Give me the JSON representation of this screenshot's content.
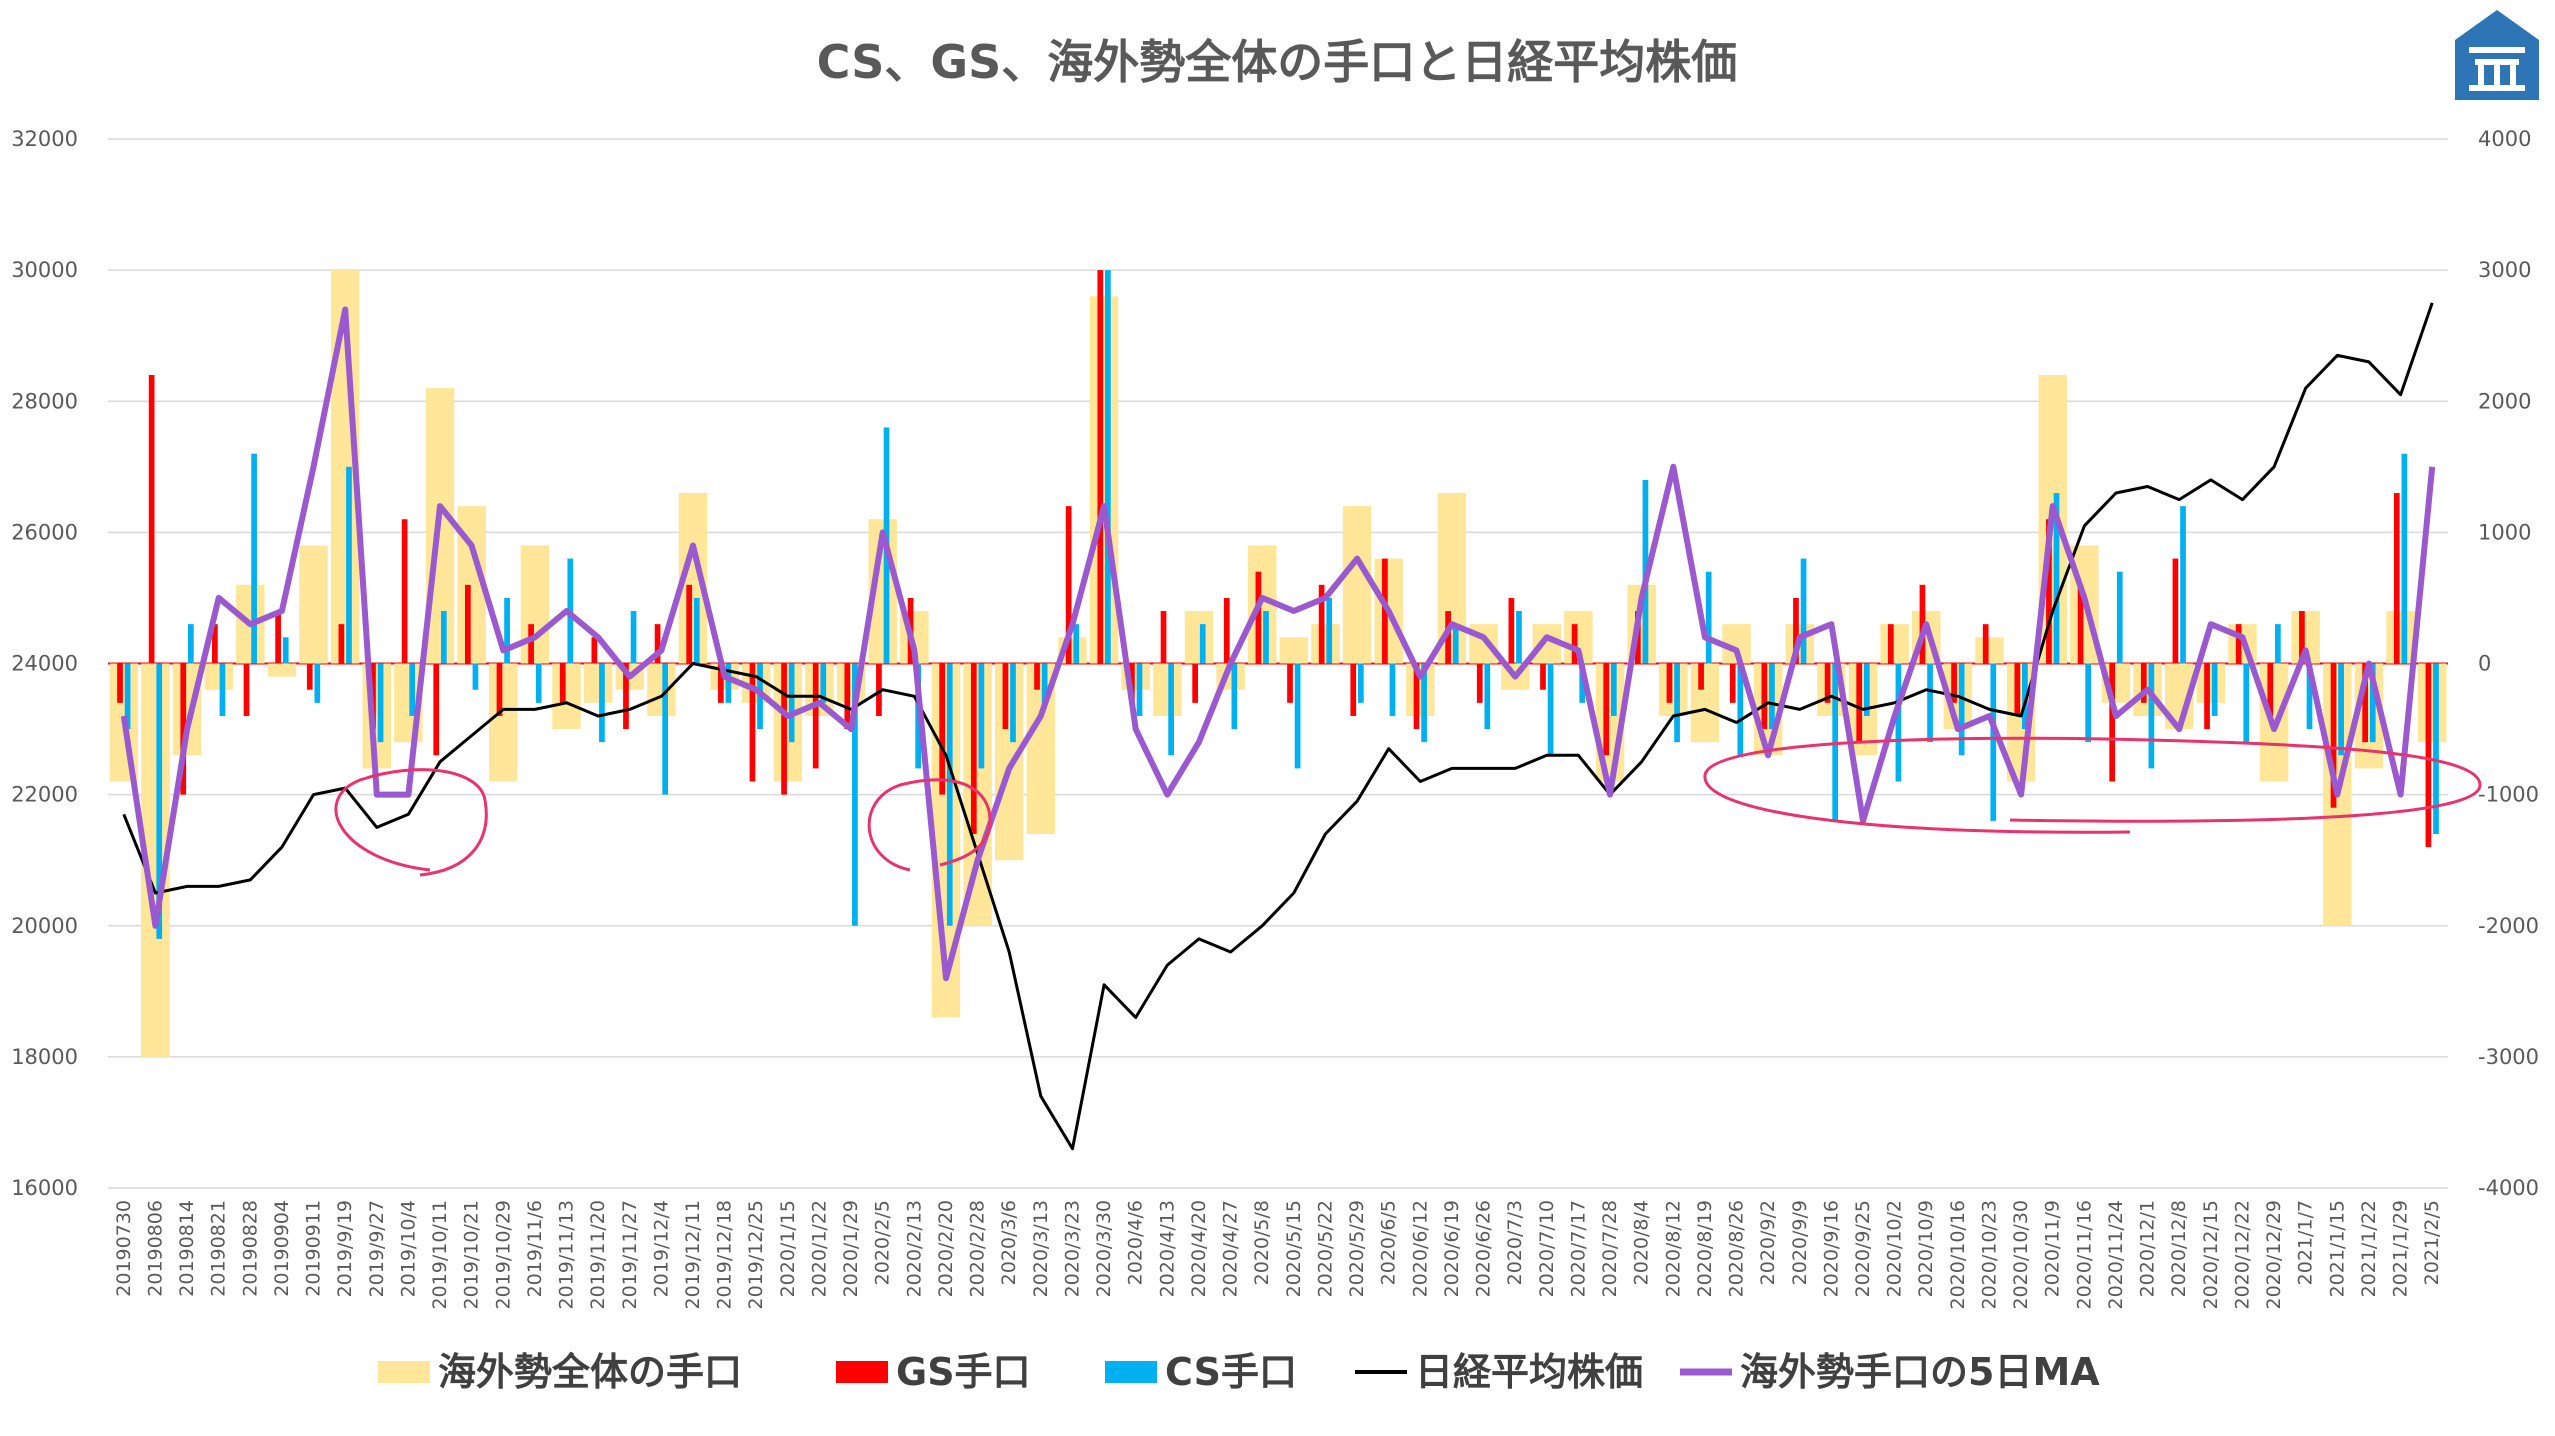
{
  "chart_data": {
    "type": "bar",
    "title": "CS、GS、海外勢全体の手口と日経平均株価",
    "left_axis": {
      "min": 16000,
      "max": 32000,
      "ticks": [
        16000,
        18000,
        20000,
        22000,
        24000,
        26000,
        28000,
        30000,
        32000
      ]
    },
    "right_axis": {
      "min": -4000,
      "max": 4000,
      "ticks": [
        -4000,
        -3000,
        -2000,
        -1000,
        0,
        1000,
        2000,
        3000,
        4000
      ]
    },
    "grid": true,
    "legend_position": "bottom",
    "categories": [
      "20190730",
      "20190806",
      "20190814",
      "20190821",
      "20190828",
      "20190904",
      "20190911",
      "2019/9/19",
      "2019/9/27",
      "2019/10/4",
      "2019/10/11",
      "2019/10/21",
      "2019/10/29",
      "2019/11/6",
      "2019/11/13",
      "2019/11/20",
      "2019/11/27",
      "2019/12/4",
      "2019/12/11",
      "2019/12/18",
      "2019/12/25",
      "2020/1/15",
      "2020/1/22",
      "2020/1/29",
      "2020/2/5",
      "2020/2/13",
      "2020/2/20",
      "2020/2/28",
      "2020/3/6",
      "2020/3/13",
      "2020/3/23",
      "2020/3/30",
      "2020/4/6",
      "2020/4/13",
      "2020/4/20",
      "2020/4/27",
      "2020/5/8",
      "2020/5/15",
      "2020/5/22",
      "2020/5/29",
      "2020/6/5",
      "2020/6/12",
      "2020/6/19",
      "2020/6/26",
      "2020/7/3",
      "2020/7/10",
      "2020/7/17",
      "2020/7/28",
      "2020/8/4",
      "2020/8/12",
      "2020/8/19",
      "2020/8/26",
      "2020/9/2",
      "2020/9/9",
      "2020/9/16",
      "2020/9/25",
      "2020/10/2",
      "2020/10/9",
      "2020/10/16",
      "2020/10/23",
      "2020/10/30",
      "2020/11/9",
      "2020/11/16",
      "2020/11/24",
      "2020/12/1",
      "2020/12/8",
      "2020/12/15",
      "2020/12/22",
      "2020/12/29",
      "2021/1/7",
      "2021/1/15",
      "2021/1/22",
      "2021/1/29",
      "2021/2/5"
    ],
    "series": [
      {
        "name": "海外勢全体の手口",
        "color": "#ffe699",
        "axis": "right",
        "values": [
          -900,
          -3000,
          -700,
          -200,
          600,
          -100,
          900,
          3000,
          -800,
          -600,
          2100,
          1200,
          -900,
          900,
          -500,
          -300,
          -200,
          -400,
          1300,
          -200,
          -300,
          -900,
          -400,
          -300,
          1100,
          400,
          -2700,
          -2000,
          -1500,
          -1300,
          200,
          2800,
          -200,
          -400,
          400,
          -200,
          900,
          200,
          300,
          1200,
          800,
          -400,
          1300,
          300,
          -200,
          300,
          400,
          -900,
          600,
          -400,
          -600,
          300,
          -700,
          300,
          -400,
          -700,
          300,
          400,
          -500,
          200,
          -900,
          2200,
          900,
          -300,
          -400,
          -500,
          -300,
          300,
          -900,
          400,
          -2000,
          -800,
          400,
          -600
        ]
      },
      {
        "name": "GS手口",
        "color": "#ff0000",
        "axis": "right",
        "values": [
          -300,
          2200,
          -1000,
          300,
          -400,
          400,
          -200,
          300,
          -500,
          1100,
          -700,
          600,
          -400,
          300,
          -300,
          200,
          -500,
          300,
          600,
          -300,
          -900,
          -1000,
          -800,
          -500,
          -400,
          500,
          -1000,
          -1300,
          -500,
          -200,
          1200,
          3000,
          -300,
          400,
          -300,
          500,
          700,
          -300,
          600,
          -400,
          800,
          -500,
          400,
          -300,
          500,
          -200,
          300,
          -700,
          400,
          -300,
          -200,
          -300,
          -500,
          500,
          -300,
          -600,
          300,
          600,
          -300,
          300,
          -400,
          1100,
          600,
          -900,
          -300,
          800,
          -500,
          300,
          -400,
          400,
          -1100,
          -600,
          1300,
          -1400
        ]
      },
      {
        "name": "CS手口",
        "color": "#00b0f0",
        "axis": "right",
        "values": [
          -500,
          -2100,
          300,
          -400,
          1600,
          200,
          -300,
          1500,
          -600,
          -400,
          400,
          -200,
          500,
          -300,
          800,
          -600,
          400,
          -1000,
          500,
          -300,
          -500,
          -600,
          -300,
          -2000,
          1800,
          -800,
          -2000,
          -800,
          -600,
          -300,
          300,
          3000,
          -400,
          -700,
          300,
          -500,
          400,
          -800,
          500,
          -300,
          -400,
          -600,
          300,
          -500,
          400,
          -700,
          -300,
          -400,
          1400,
          -600,
          700,
          -700,
          -500,
          800,
          -1200,
          -400,
          -900,
          -600,
          -700,
          -1200,
          -500,
          1300,
          -600,
          700,
          -800,
          1200,
          -400,
          -600,
          300,
          -500,
          -700,
          -600,
          1600,
          -1300
        ]
      },
      {
        "name": "日経平均株価",
        "color": "#000000",
        "axis": "left",
        "values": [
          21700,
          20500,
          20600,
          20600,
          20700,
          21200,
          22000,
          22100,
          21500,
          21700,
          22500,
          22900,
          23300,
          23300,
          23400,
          23200,
          23300,
          23500,
          24000,
          23900,
          23800,
          23500,
          23500,
          23300,
          23600,
          23500,
          22600,
          21100,
          19600,
          17400,
          16600,
          19100,
          18600,
          19400,
          19800,
          19600,
          20000,
          20500,
          21400,
          21900,
          22700,
          22200,
          22400,
          22400,
          22400,
          22600,
          22600,
          22000,
          22500,
          23200,
          23300,
          23100,
          23400,
          23300,
          23500,
          23300,
          23400,
          23600,
          23500,
          23300,
          23200,
          24800,
          26100,
          26600,
          26700,
          26500,
          26800,
          26500,
          27000,
          28200,
          28700,
          28600,
          28100,
          29500
        ]
      },
      {
        "name": "海外勢手口の5日MA",
        "color": "#9b59d0",
        "axis": "right",
        "values": [
          -400,
          -2000,
          -500,
          500,
          300,
          400,
          1500,
          2700,
          -1000,
          -1000,
          1200,
          900,
          100,
          200,
          400,
          200,
          -100,
          100,
          900,
          -100,
          -200,
          -400,
          -300,
          -500,
          1000,
          100,
          -2400,
          -1500,
          -800,
          -400,
          300,
          1200,
          -500,
          -1000,
          -600,
          0,
          500,
          400,
          500,
          800,
          400,
          -100,
          300,
          200,
          -100,
          200,
          100,
          -1000,
          500,
          1500,
          200,
          100,
          -700,
          200,
          300,
          -1200,
          -400,
          300,
          -500,
          -400,
          -1000,
          1200,
          500,
          -400,
          -200,
          -500,
          300,
          200,
          -500,
          100,
          -1000,
          0,
          -1000,
          1500
        ]
      }
    ]
  }
}
